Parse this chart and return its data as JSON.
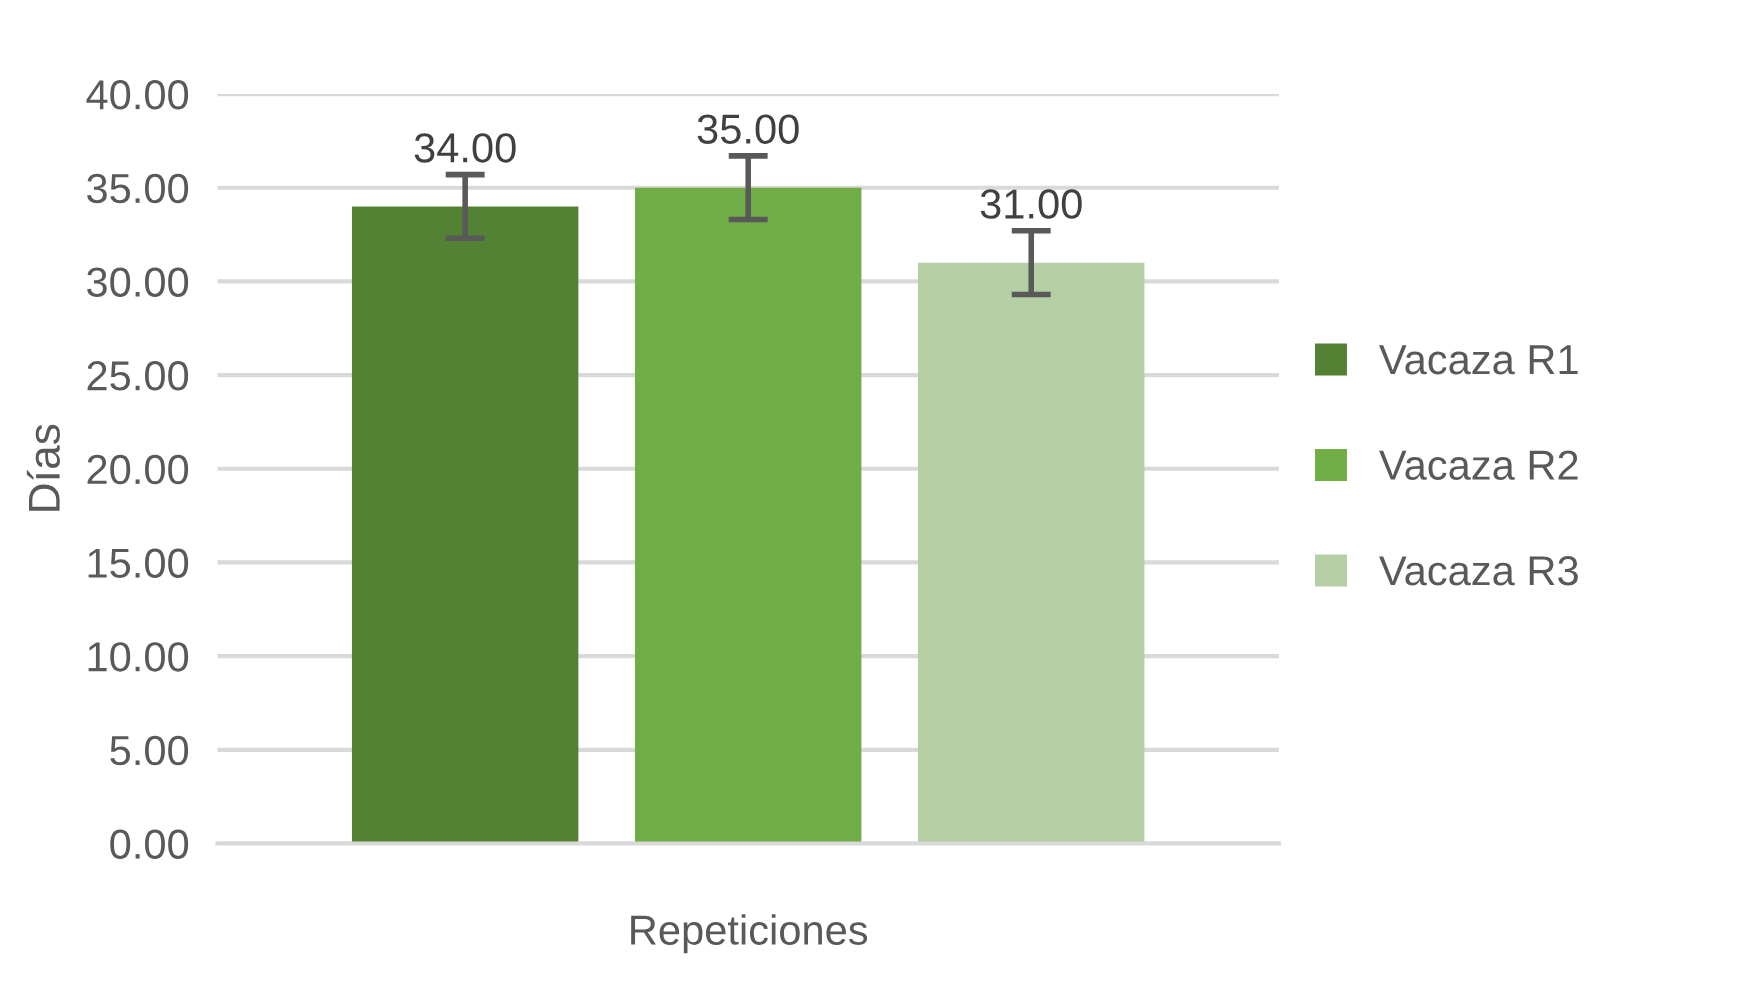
{
  "chart_data": {
    "type": "bar",
    "ylabel": "Días",
    "xlabel": "Repeticiones",
    "categories": [
      null
    ],
    "series": [
      {
        "name": "Vacaza R1",
        "color": "#548235",
        "values": [
          34.0
        ],
        "errors": [
          1.7
        ],
        "value_labels": [
          "34.00"
        ]
      },
      {
        "name": "Vacaza R2",
        "color": "#70ad47",
        "values": [
          35.0
        ],
        "errors": [
          1.7
        ],
        "value_labels": [
          "35.00"
        ]
      },
      {
        "name": "Vacaza R3",
        "color": "#b4cfa3",
        "values": [
          31.0
        ],
        "errors": [
          1.7
        ],
        "value_labels": [
          "31.00"
        ]
      }
    ],
    "ylim": [
      0,
      40
    ],
    "yticks": [
      {
        "value": 0,
        "label": "0.00"
      },
      {
        "value": 5,
        "label": "5.00"
      },
      {
        "value": 10,
        "label": "10.00"
      },
      {
        "value": 15,
        "label": "15.00"
      },
      {
        "value": 20,
        "label": "20.00"
      },
      {
        "value": 25,
        "label": "25.00"
      },
      {
        "value": 30,
        "label": "30.00"
      },
      {
        "value": 35,
        "label": "35.00"
      },
      {
        "value": 40,
        "label": "40.00"
      }
    ],
    "grid": "y",
    "legend": "right"
  }
}
